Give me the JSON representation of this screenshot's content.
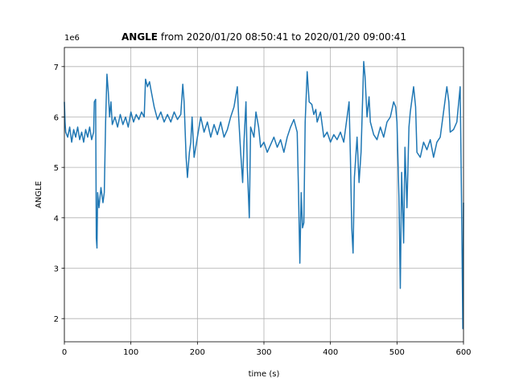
{
  "chart_data": {
    "type": "line",
    "title_bold": "ANGLE",
    "title": "from 2020/01/20 08:50:41 to 2020/01/20 09:00:41",
    "offset_label": "1e6",
    "x_label": "time (s)",
    "y_label": "ANGLE",
    "color": "#1f77b4",
    "grid": true,
    "xlim": [
      0,
      600
    ],
    "ylim": [
      1.54,
      7.38
    ],
    "xticks": [
      0,
      100,
      200,
      300,
      400,
      500,
      600
    ],
    "yticks": [
      2,
      3,
      4,
      5,
      6,
      7
    ],
    "x": [
      0,
      1,
      2,
      5,
      8,
      11,
      14,
      17,
      20,
      23,
      26,
      29,
      32,
      35,
      38,
      41,
      44,
      45,
      47,
      48,
      49,
      50,
      52,
      55,
      58,
      60,
      62,
      64,
      66,
      68,
      70,
      72,
      76,
      80,
      84,
      88,
      92,
      96,
      100,
      104,
      108,
      112,
      116,
      120,
      122,
      125,
      128,
      130,
      135,
      140,
      145,
      150,
      155,
      160,
      165,
      170,
      175,
      178,
      180,
      183,
      185,
      188,
      190,
      192,
      195,
      200,
      205,
      210,
      215,
      220,
      225,
      230,
      235,
      240,
      245,
      250,
      255,
      260,
      262,
      265,
      268,
      270,
      273,
      275,
      278,
      280,
      285,
      288,
      292,
      295,
      300,
      305,
      310,
      315,
      320,
      325,
      330,
      335,
      340,
      345,
      350,
      352,
      354,
      356,
      358,
      360,
      362,
      365,
      368,
      372,
      375,
      378,
      380,
      385,
      390,
      395,
      400,
      405,
      410,
      415,
      420,
      425,
      428,
      430,
      432,
      434,
      436,
      440,
      443,
      446,
      448,
      450,
      452,
      455,
      458,
      460,
      465,
      470,
      475,
      480,
      485,
      490,
      495,
      498,
      500,
      503,
      505,
      507,
      510,
      512,
      515,
      518,
      520,
      525,
      528,
      530,
      535,
      540,
      545,
      550,
      555,
      560,
      565,
      570,
      575,
      578,
      580,
      585,
      590,
      595,
      597,
      599,
      600
    ],
    "values": [
      6.3,
      5.9,
      5.7,
      5.6,
      5.8,
      5.5,
      5.75,
      5.6,
      5.8,
      5.55,
      5.7,
      5.5,
      5.75,
      5.6,
      5.8,
      5.55,
      5.7,
      6.3,
      6.35,
      3.6,
      3.4,
      4.5,
      4.2,
      4.6,
      4.3,
      4.5,
      5.9,
      6.85,
      6.5,
      6.0,
      6.3,
      5.85,
      6.0,
      5.8,
      6.05,
      5.85,
      6.0,
      5.8,
      6.1,
      5.9,
      6.05,
      5.95,
      6.1,
      6.0,
      6.75,
      6.6,
      6.7,
      6.55,
      6.2,
      5.95,
      6.1,
      5.9,
      6.05,
      5.9,
      6.1,
      5.95,
      6.05,
      6.65,
      6.3,
      5.2,
      4.8,
      5.3,
      5.5,
      6.0,
      5.2,
      5.6,
      6.0,
      5.7,
      5.9,
      5.6,
      5.85,
      5.65,
      5.9,
      5.6,
      5.75,
      6.0,
      6.2,
      6.6,
      6.0,
      5.3,
      4.7,
      5.5,
      6.3,
      5.0,
      4.0,
      5.8,
      5.6,
      6.1,
      5.8,
      5.4,
      5.5,
      5.3,
      5.45,
      5.6,
      5.4,
      5.55,
      5.3,
      5.6,
      5.8,
      5.95,
      5.7,
      4.5,
      3.1,
      4.5,
      3.8,
      3.9,
      5.9,
      6.9,
      6.3,
      6.25,
      6.05,
      6.15,
      5.9,
      6.1,
      5.6,
      5.7,
      5.5,
      5.65,
      5.55,
      5.7,
      5.5,
      6.0,
      6.3,
      5.2,
      3.8,
      3.3,
      4.8,
      5.6,
      4.7,
      5.3,
      6.2,
      7.1,
      6.8,
      6.0,
      6.4,
      5.9,
      5.65,
      5.55,
      5.8,
      5.6,
      5.9,
      6.0,
      6.3,
      6.2,
      5.9,
      4.4,
      2.6,
      4.9,
      3.5,
      5.4,
      4.2,
      5.8,
      6.1,
      6.6,
      6.2,
      5.3,
      5.2,
      5.5,
      5.35,
      5.55,
      5.2,
      5.5,
      5.6,
      6.1,
      6.6,
      6.3,
      5.7,
      5.75,
      5.9,
      6.6,
      4.4,
      1.8,
      4.3
    ]
  }
}
